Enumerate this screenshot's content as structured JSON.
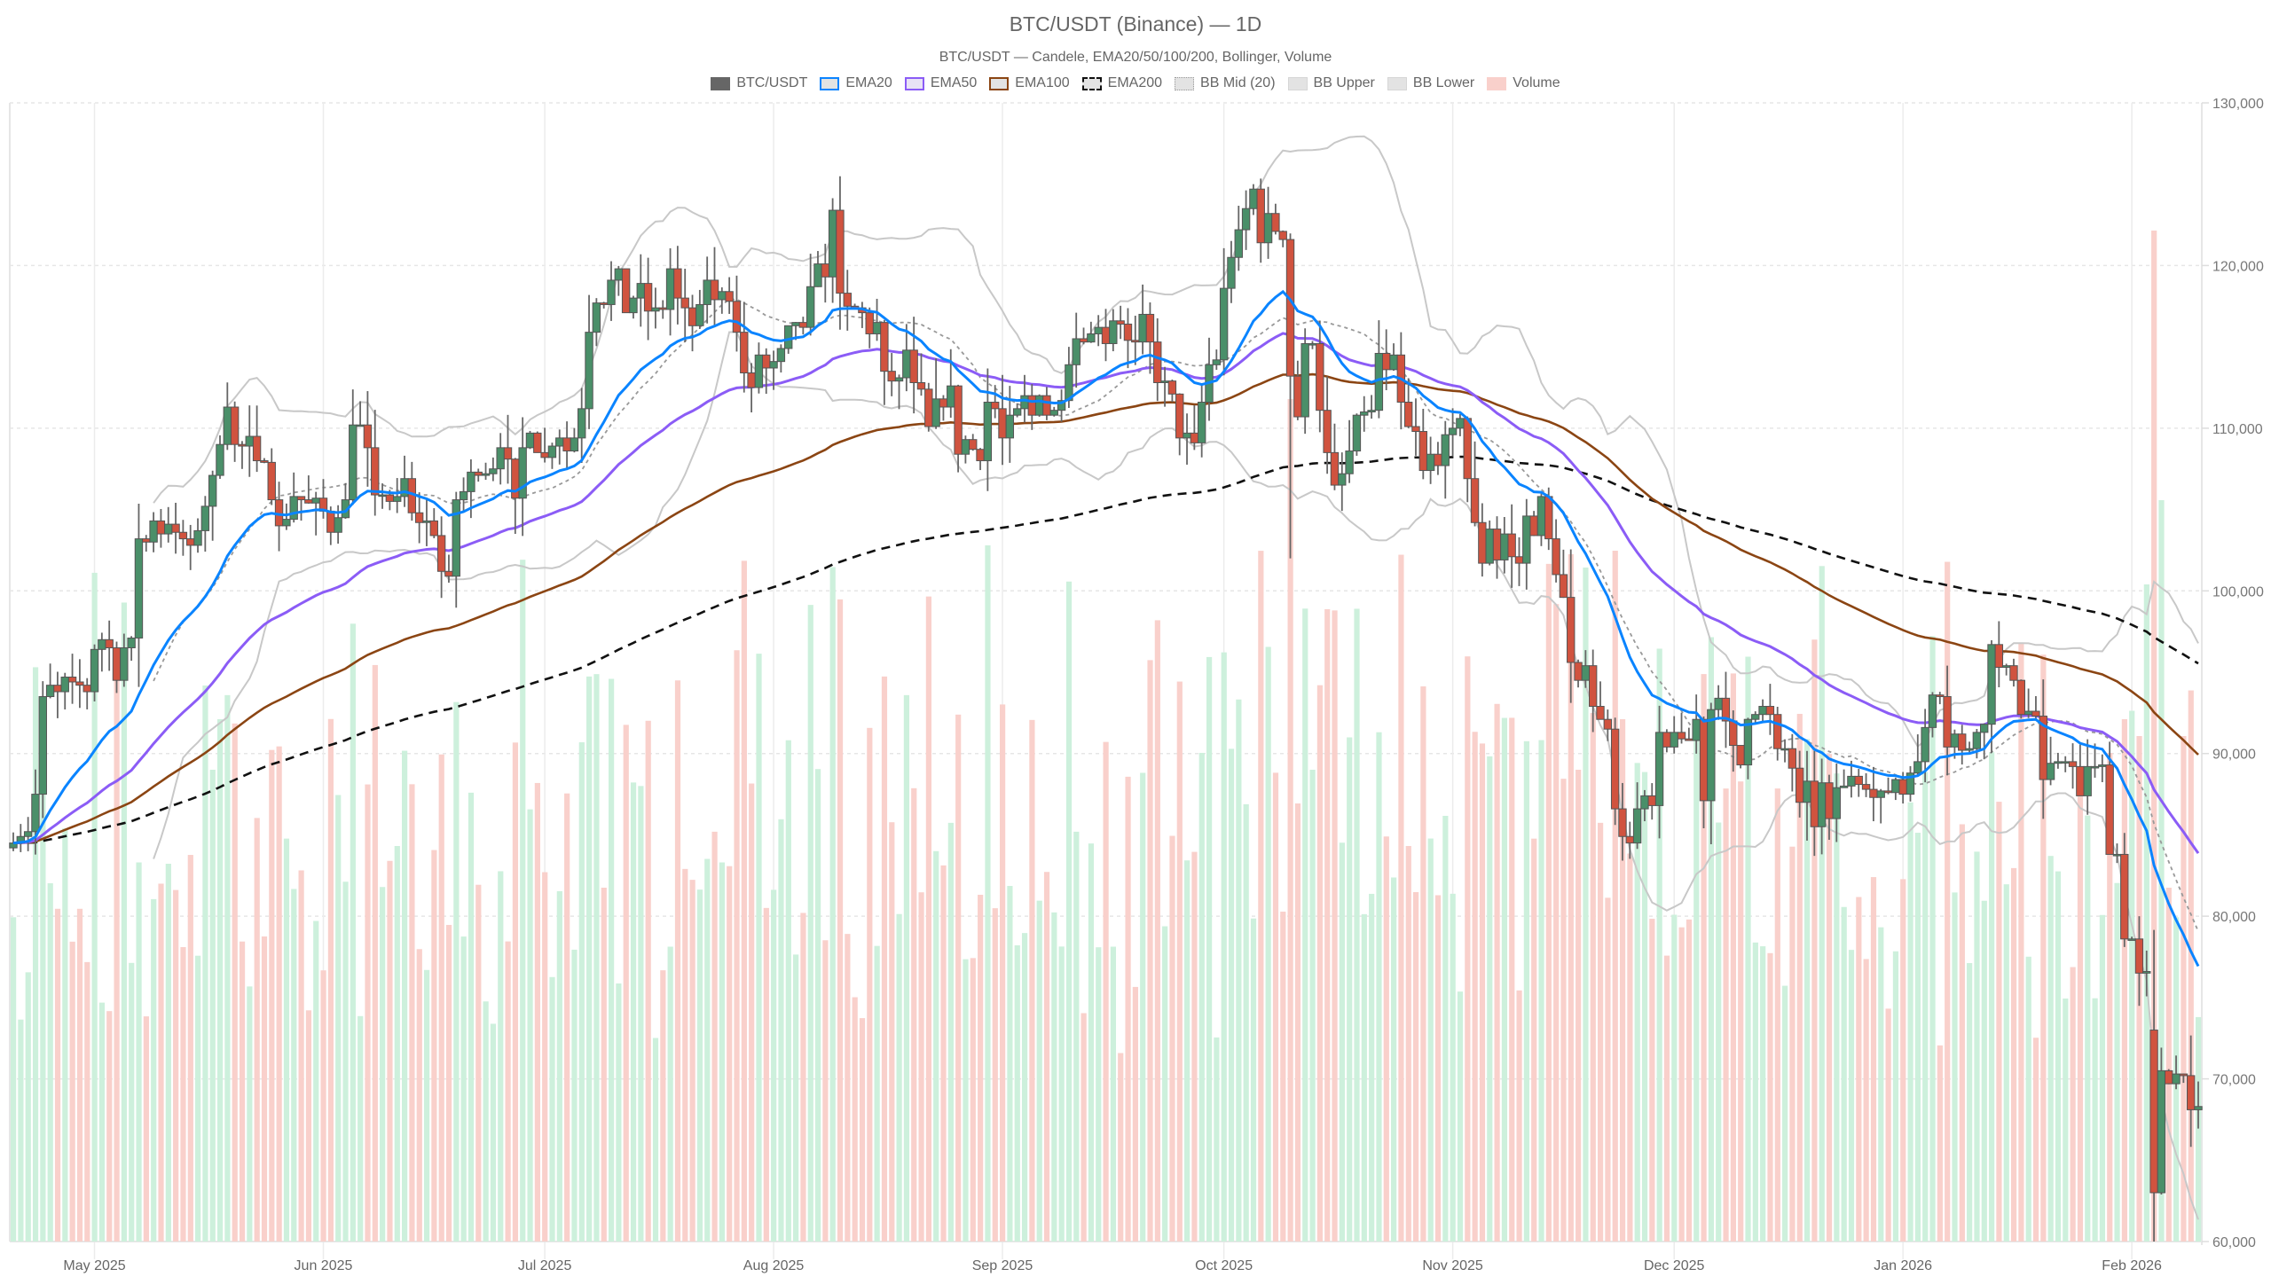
{
  "header": {
    "title": "BTC/USDT (Binance) — 1D",
    "subtitle": "BTC/USDT — Candele, EMA20/50/100/200, Bollinger, Volume"
  },
  "legend": [
    {
      "label": "BTC/USDT",
      "style": "solid",
      "fill": "#666666",
      "border": "#666666"
    },
    {
      "label": "EMA20",
      "style": "solid",
      "fill": "#e3e3e3",
      "border": "#0a84ff"
    },
    {
      "label": "EMA50",
      "style": "solid",
      "fill": "#e8e3f5",
      "border": "#8b5cf6"
    },
    {
      "label": "EMA100",
      "style": "solid",
      "fill": "#e3e3e3",
      "border": "#8b4513"
    },
    {
      "label": "EMA200",
      "style": "dashed",
      "fill": "#e3e3e3",
      "border": "#111111"
    },
    {
      "label": "BB Mid (20)",
      "style": "dotted",
      "fill": "#e3e3e3",
      "border": "#999999"
    },
    {
      "label": "BB Upper",
      "style": "solid",
      "fill": "#e3e3e3",
      "border": "#d0d0d0"
    },
    {
      "label": "BB Lower",
      "style": "solid",
      "fill": "#e3e3e3",
      "border": "#d0d0d0"
    },
    {
      "label": "Volume",
      "style": "solid",
      "fill": "#f9d0cb",
      "border": "#f9d0cb"
    }
  ],
  "colors": {
    "up": "#4a8f69",
    "down": "#d0533f",
    "wick": "#666666",
    "vol_up": "#cdf0dc",
    "vol_down": "#f9d0cb",
    "ema20": "#0a84ff",
    "ema50": "#8b5cf6",
    "ema100": "#8b4513",
    "ema200": "#111111",
    "bb": "#c8c8c8",
    "bbmid": "#999999",
    "grid": "#e6e6e6"
  },
  "chart_data": {
    "type": "candlestick",
    "title": "BTC/USDT (Binance) — 1D",
    "subtitle": "BTC/USDT — Candele, EMA20/50/100/200, Bollinger, Volume",
    "xlabel": "",
    "ylabel": "",
    "ylim": [
      60000,
      130000
    ],
    "y_ticks": [
      "60,000",
      "70,000",
      "80,000",
      "90,000",
      "100,000",
      "110,000",
      "120,000",
      "130,000"
    ],
    "x_ticks": [
      {
        "label": "May 2025",
        "day": 11
      },
      {
        "label": "Jun 2025",
        "day": 42
      },
      {
        "label": "Jul 2025",
        "day": 72
      },
      {
        "label": "Aug 2025",
        "day": 103
      },
      {
        "label": "Sep 2025",
        "day": 134
      },
      {
        "label": "Oct 2025",
        "day": 164
      },
      {
        "label": "Nov 2025",
        "day": 195
      },
      {
        "label": "Dec 2025",
        "day": 225
      },
      {
        "label": "Jan 2026",
        "day": 256
      },
      {
        "label": "Feb 2026",
        "day": 287
      }
    ],
    "start_date": "2025-04-20",
    "grid": true,
    "legend_position": "top",
    "series_names": [
      "BTC/USDT",
      "EMA20",
      "EMA50",
      "EMA100",
      "EMA200",
      "BB Mid (20)",
      "BB Upper",
      "BB Lower",
      "Volume"
    ],
    "close_waypoints": [
      [
        0,
        84500
      ],
      [
        1,
        84900
      ],
      [
        2,
        85200
      ],
      [
        3,
        87500
      ],
      [
        4,
        93500
      ],
      [
        5,
        94200
      ],
      [
        6,
        93800
      ],
      [
        7,
        94700
      ],
      [
        8,
        94400
      ],
      [
        9,
        94200
      ],
      [
        10,
        93800
      ],
      [
        11,
        96400
      ],
      [
        12,
        97000
      ],
      [
        13,
        96500
      ],
      [
        14,
        94500
      ],
      [
        15,
        96500
      ],
      [
        16,
        97100
      ],
      [
        17,
        103200
      ],
      [
        18,
        103000
      ],
      [
        19,
        104300
      ],
      [
        20,
        103500
      ],
      [
        21,
        104100
      ],
      [
        22,
        103600
      ],
      [
        23,
        103200
      ],
      [
        24,
        102800
      ],
      [
        25,
        103700
      ],
      [
        26,
        105200
      ],
      [
        27,
        107100
      ],
      [
        28,
        109000
      ],
      [
        29,
        111300
      ],
      [
        30,
        109000
      ],
      [
        31,
        108900
      ],
      [
        32,
        109500
      ],
      [
        33,
        108000
      ],
      [
        34,
        107900
      ],
      [
        35,
        105600
      ],
      [
        36,
        104000
      ],
      [
        37,
        104400
      ],
      [
        38,
        105800
      ],
      [
        39,
        105600
      ],
      [
        40,
        105400
      ],
      [
        41,
        105700
      ],
      [
        42,
        104900
      ],
      [
        43,
        103600
      ],
      [
        44,
        104500
      ],
      [
        45,
        105600
      ],
      [
        46,
        110200
      ],
      [
        47,
        110200
      ],
      [
        48,
        108800
      ],
      [
        49,
        105900
      ],
      [
        50,
        105900
      ],
      [
        51,
        105500
      ],
      [
        52,
        105800
      ],
      [
        53,
        106900
      ],
      [
        54,
        104800
      ],
      [
        55,
        104200
      ],
      [
        56,
        104300
      ],
      [
        57,
        103400
      ],
      [
        58,
        101200
      ],
      [
        59,
        100900
      ],
      [
        60,
        105600
      ],
      [
        61,
        106100
      ],
      [
        62,
        107300
      ],
      [
        63,
        107100
      ],
      [
        64,
        107200
      ],
      [
        65,
        107500
      ],
      [
        66,
        108800
      ],
      [
        67,
        108100
      ],
      [
        68,
        105700
      ],
      [
        69,
        108800
      ],
      [
        70,
        109700
      ],
      [
        71,
        108500
      ],
      [
        72,
        108200
      ],
      [
        73,
        108900
      ],
      [
        74,
        109400
      ],
      [
        75,
        108600
      ],
      [
        76,
        109400
      ],
      [
        77,
        111200
      ],
      [
        78,
        115900
      ],
      [
        79,
        117700
      ],
      [
        80,
        117600
      ],
      [
        81,
        119100
      ],
      [
        82,
        119800
      ],
      [
        83,
        117100
      ],
      [
        84,
        118000
      ],
      [
        85,
        118900
      ],
      [
        86,
        117200
      ],
      [
        87,
        117400
      ],
      [
        88,
        117300
      ],
      [
        89,
        119800
      ],
      [
        90,
        118000
      ],
      [
        91,
        117400
      ],
      [
        92,
        116300
      ],
      [
        93,
        117600
      ],
      [
        94,
        119100
      ],
      [
        95,
        117900
      ],
      [
        96,
        118400
      ],
      [
        97,
        117800
      ],
      [
        98,
        115900
      ],
      [
        99,
        113400
      ],
      [
        100,
        112500
      ],
      [
        101,
        114500
      ],
      [
        102,
        113700
      ],
      [
        103,
        114100
      ],
      [
        104,
        114900
      ],
      [
        105,
        116300
      ],
      [
        106,
        116500
      ],
      [
        107,
        116200
      ],
      [
        108,
        118700
      ],
      [
        109,
        120100
      ],
      [
        110,
        119300
      ],
      [
        111,
        123400
      ],
      [
        112,
        118300
      ],
      [
        113,
        117500
      ],
      [
        114,
        117400
      ],
      [
        115,
        117100
      ],
      [
        116,
        115800
      ],
      [
        117,
        116500
      ],
      [
        118,
        113500
      ],
      [
        119,
        112900
      ],
      [
        120,
        113100
      ],
      [
        121,
        114800
      ],
      [
        122,
        112800
      ],
      [
        123,
        112400
      ],
      [
        124,
        110100
      ],
      [
        125,
        111800
      ],
      [
        126,
        111300
      ],
      [
        127,
        112600
      ],
      [
        128,
        108400
      ],
      [
        129,
        109300
      ],
      [
        130,
        108700
      ],
      [
        131,
        108000
      ],
      [
        132,
        111600
      ],
      [
        133,
        111200
      ],
      [
        134,
        109400
      ],
      [
        135,
        110800
      ],
      [
        136,
        111200
      ],
      [
        137,
        112000
      ],
      [
        138,
        110800
      ],
      [
        139,
        112000
      ],
      [
        140,
        110800
      ],
      [
        141,
        111100
      ],
      [
        142,
        111700
      ],
      [
        143,
        113900
      ],
      [
        144,
        115500
      ],
      [
        145,
        115300
      ],
      [
        146,
        115800
      ],
      [
        147,
        116200
      ],
      [
        148,
        115200
      ],
      [
        149,
        116600
      ],
      [
        150,
        116400
      ],
      [
        151,
        115400
      ],
      [
        152,
        115300
      ],
      [
        153,
        117000
      ],
      [
        154,
        115300
      ],
      [
        155,
        112800
      ],
      [
        156,
        112900
      ],
      [
        157,
        112100
      ],
      [
        158,
        109400
      ],
      [
        159,
        109700
      ],
      [
        160,
        109100
      ],
      [
        161,
        111600
      ],
      [
        162,
        113900
      ],
      [
        163,
        114200
      ],
      [
        164,
        118600
      ],
      [
        165,
        120500
      ],
      [
        166,
        122200
      ],
      [
        167,
        123500
      ],
      [
        168,
        124700
      ],
      [
        169,
        121400
      ],
      [
        170,
        123200
      ],
      [
        171,
        122100
      ],
      [
        172,
        121600
      ],
      [
        173,
        113200
      ],
      [
        174,
        110700
      ],
      [
        175,
        115200
      ],
      [
        176,
        115200
      ],
      [
        177,
        111100
      ],
      [
        178,
        108500
      ],
      [
        179,
        106500
      ],
      [
        180,
        107200
      ],
      [
        181,
        108600
      ],
      [
        182,
        110800
      ],
      [
        183,
        111000
      ],
      [
        184,
        111100
      ],
      [
        185,
        114600
      ],
      [
        186,
        113600
      ],
      [
        187,
        114500
      ],
      [
        188,
        111600
      ],
      [
        189,
        110100
      ],
      [
        190,
        109800
      ],
      [
        191,
        107400
      ],
      [
        192,
        108400
      ],
      [
        193,
        107700
      ],
      [
        194,
        109600
      ],
      [
        195,
        110000
      ],
      [
        196,
        110600
      ],
      [
        197,
        106900
      ],
      [
        198,
        104200
      ],
      [
        199,
        101700
      ],
      [
        200,
        103800
      ],
      [
        201,
        101900
      ],
      [
        202,
        103500
      ],
      [
        203,
        102100
      ],
      [
        204,
        101700
      ],
      [
        205,
        104600
      ],
      [
        206,
        103400
      ],
      [
        207,
        105800
      ],
      [
        208,
        103200
      ],
      [
        209,
        101000
      ],
      [
        210,
        99600
      ],
      [
        211,
        95600
      ],
      [
        212,
        94500
      ],
      [
        213,
        95400
      ],
      [
        214,
        92900
      ],
      [
        215,
        92100
      ],
      [
        216,
        91500
      ],
      [
        217,
        86600
      ],
      [
        218,
        84900
      ],
      [
        219,
        84500
      ],
      [
        220,
        86600
      ],
      [
        221,
        87400
      ],
      [
        222,
        86800
      ],
      [
        223,
        91300
      ],
      [
        224,
        90400
      ],
      [
        225,
        91300
      ],
      [
        226,
        90900
      ],
      [
        227,
        90800
      ],
      [
        228,
        92100
      ],
      [
        229,
        87100
      ],
      [
        230,
        92700
      ],
      [
        231,
        93400
      ],
      [
        232,
        92000
      ],
      [
        233,
        90500
      ],
      [
        234,
        89300
      ],
      [
        235,
        92100
      ],
      [
        236,
        92400
      ],
      [
        237,
        92900
      ],
      [
        238,
        92400
      ],
      [
        239,
        90300
      ],
      [
        240,
        90300
      ],
      [
        241,
        89100
      ],
      [
        242,
        87000
      ],
      [
        243,
        88300
      ],
      [
        244,
        85500
      ],
      [
        245,
        88200
      ],
      [
        246,
        86000
      ],
      [
        247,
        87900
      ],
      [
        248,
        88000
      ],
      [
        249,
        88600
      ],
      [
        250,
        88100
      ],
      [
        251,
        87800
      ],
      [
        252,
        87300
      ],
      [
        253,
        87700
      ],
      [
        254,
        87600
      ],
      [
        255,
        88400
      ],
      [
        256,
        87500
      ],
      [
        257,
        88800
      ],
      [
        258,
        89500
      ],
      [
        259,
        91600
      ],
      [
        260,
        93600
      ],
      [
        261,
        93500
      ],
      [
        262,
        90400
      ],
      [
        263,
        91200
      ],
      [
        264,
        90200
      ],
      [
        265,
        90300
      ],
      [
        266,
        91300
      ],
      [
        267,
        91800
      ],
      [
        268,
        96700
      ],
      [
        269,
        95300
      ],
      [
        270,
        95400
      ],
      [
        271,
        94500
      ],
      [
        272,
        92400
      ],
      [
        273,
        92600
      ],
      [
        274,
        92300
      ],
      [
        275,
        88400
      ],
      [
        276,
        89400
      ],
      [
        277,
        89500
      ],
      [
        278,
        89500
      ],
      [
        279,
        89200
      ],
      [
        280,
        87400
      ],
      [
        281,
        89200
      ],
      [
        282,
        89200
      ],
      [
        283,
        89300
      ],
      [
        284,
        83800
      ],
      [
        285,
        83800
      ],
      [
        286,
        78600
      ],
      [
        287,
        78600
      ],
      [
        288,
        76500
      ],
      [
        289,
        76600
      ],
      [
        290,
        63000
      ],
      [
        291,
        70500
      ],
      [
        292,
        69700
      ],
      [
        293,
        70300
      ],
      [
        294,
        70200
      ],
      [
        295,
        68100
      ],
      [
        296,
        68300
      ]
    ],
    "volume_units": "relative",
    "volume_scale_note": "volume bars drawn in lower portion, max ~spike near Feb 2026"
  }
}
